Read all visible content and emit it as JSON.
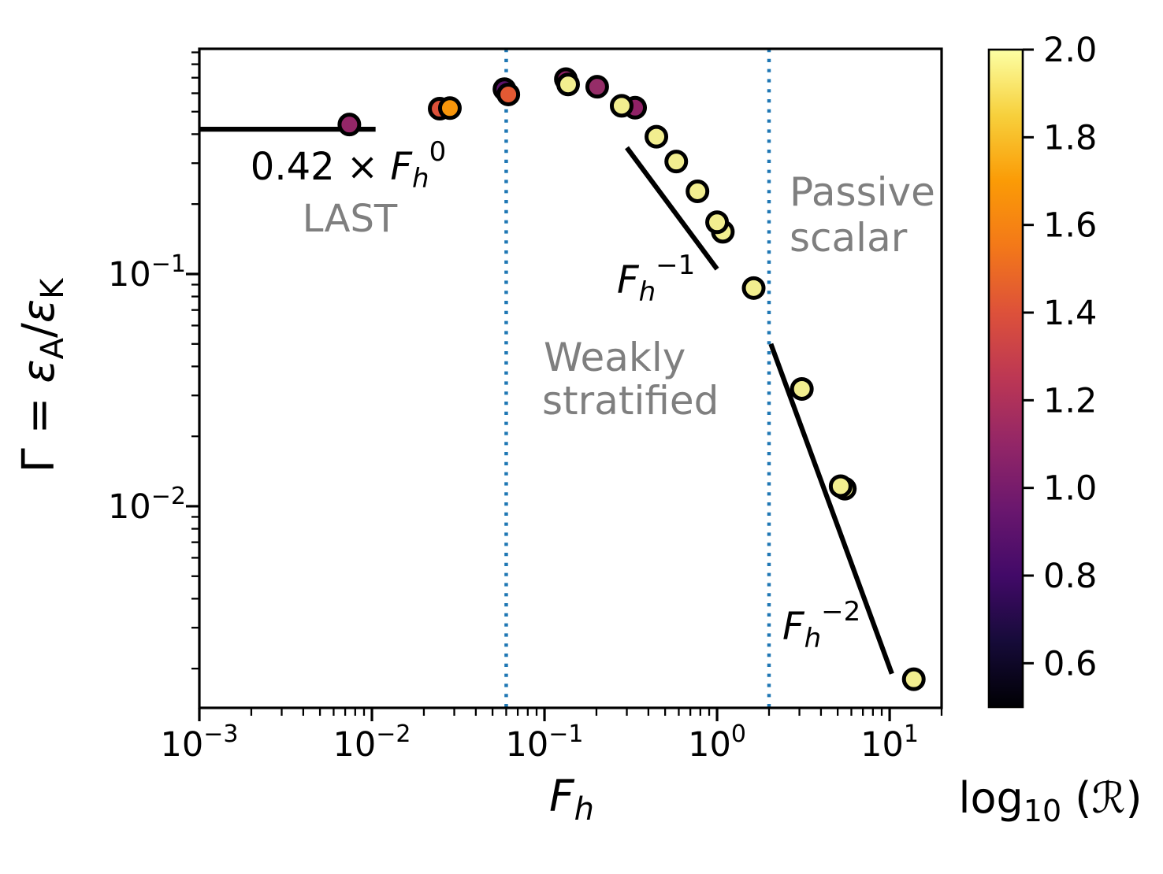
{
  "plot": {
    "xlabel": {
      "var": "F",
      "sub": "h"
    },
    "ylabel": {
      "pre": "Γ = ",
      "eps1": "ε",
      "subA": "A",
      "slash": "/",
      "eps2": "ε",
      "subK": "K"
    },
    "xticks": [
      {
        "base": "10",
        "exp": "−3",
        "value": 0.001
      },
      {
        "base": "10",
        "exp": "−2",
        "value": 0.01
      },
      {
        "base": "10",
        "exp": "−1",
        "value": 0.1
      },
      {
        "base": "10",
        "exp": "0",
        "value": 1
      },
      {
        "base": "10",
        "exp": "1",
        "value": 10
      }
    ],
    "yticks": [
      {
        "base": "10",
        "exp": "−1",
        "value": 0.1
      },
      {
        "base": "10",
        "exp": "−2",
        "value": 0.01
      }
    ]
  },
  "annotations": {
    "fit_label": {
      "prefix": "0.42 × ",
      "var": "F",
      "sub": "h",
      "sup": "0"
    },
    "last": "LAST",
    "weakly_line1": "Weakly",
    "weakly_line2": "stratified",
    "passive_line1": "Passive",
    "passive_line2": "scalar",
    "fh1": {
      "var": "F",
      "sub": "h",
      "sup": "−1"
    },
    "fh2": {
      "var": "F",
      "sub": "h",
      "sup": "−2"
    }
  },
  "colorbar": {
    "label": {
      "log": "log",
      "sub": "10",
      "open": " (",
      "symbol": "ℛ",
      "close": ")"
    },
    "vmin": 0.5,
    "vmax": 2.0,
    "tick_labels": [
      "2.0",
      "1.8",
      "1.6",
      "1.4",
      "1.2",
      "1.0",
      "0.8",
      "0.6"
    ],
    "colormap": "inferno",
    "gradient_bottom_to_top": [
      "#000004",
      "#160b39",
      "#420a68",
      "#6a176e",
      "#932667",
      "#bc3754",
      "#dd513a",
      "#f37819",
      "#fb9b06",
      "#f7d03c",
      "#fcffa4"
    ]
  },
  "colors": {
    "divider_blue": "#1f77b4",
    "annotation_gray": "#7f7f7f",
    "guide_line_black": "#000000",
    "marker_edge": "#000000",
    "pale_yellow_marker": "#f2ee8f"
  },
  "chart_data": {
    "type": "scatter",
    "title": "",
    "xlabel": "F_h",
    "ylabel": "Γ = ε_A/ε_K",
    "x_scale": "log",
    "y_scale": "log",
    "xlim": [
      0.001,
      20
    ],
    "ylim": [
      0.00135,
      0.932
    ],
    "grid": false,
    "colorbar_label": "log10(R)",
    "dividers_x": [
      0.06,
      2.0
    ],
    "regions": [
      "LAST",
      "Weakly stratified",
      "Passive scalar"
    ],
    "guide_lines": [
      {
        "name": "flat-0.42",
        "slope": 0,
        "from": [
          0.001,
          0.42
        ],
        "to": [
          0.0105,
          0.42
        ]
      },
      {
        "name": "Fh^-1",
        "slope": -1,
        "from": [
          0.3,
          0.35
        ],
        "to": [
          1.0,
          0.105
        ]
      },
      {
        "name": "Fh^-2",
        "slope": -2,
        "from": [
          2.05,
          0.05
        ],
        "to": [
          10.3,
          0.0019
        ]
      }
    ],
    "points": [
      {
        "Fh": 0.0074,
        "Gamma": 0.44,
        "log10R": 1.05,
        "color": "#932667"
      },
      {
        "Fh": 0.0247,
        "Gamma": 0.515,
        "log10R": 1.4,
        "color": "#dd513a"
      },
      {
        "Fh": 0.0283,
        "Gamma": 0.518,
        "log10R": 1.65,
        "color": "#f9960b"
      },
      {
        "Fh": 0.0586,
        "Gamma": 0.625,
        "log10R": 0.95,
        "color": "#5c126a"
      },
      {
        "Fh": 0.0617,
        "Gamma": 0.593,
        "log10R": 1.45,
        "color": "#e35933"
      },
      {
        "Fh": 0.133,
        "Gamma": 0.69,
        "log10R": 1.1,
        "color": "#8f2166"
      },
      {
        "Fh": 0.137,
        "Gamma": 0.655,
        "log10R": 1.95,
        "color": "#f2ee8f"
      },
      {
        "Fh": 0.202,
        "Gamma": 0.64,
        "log10R": 1.1,
        "color": "#952d68"
      },
      {
        "Fh": 0.335,
        "Gamma": 0.52,
        "log10R": 1.1,
        "color": "#8f2166"
      },
      {
        "Fh": 0.28,
        "Gamma": 0.53,
        "log10R": 1.95,
        "color": "#f2ee8f"
      },
      {
        "Fh": 0.445,
        "Gamma": 0.39,
        "log10R": 1.95,
        "color": "#f2ee8f"
      },
      {
        "Fh": 0.58,
        "Gamma": 0.305,
        "log10R": 1.95,
        "color": "#f2ee8f"
      },
      {
        "Fh": 0.77,
        "Gamma": 0.227,
        "log10R": 1.95,
        "color": "#f2ee8f"
      },
      {
        "Fh": 1.08,
        "Gamma": 0.152,
        "log10R": 1.95,
        "color": "#f2ee8f"
      },
      {
        "Fh": 1.0,
        "Gamma": 0.167,
        "log10R": 1.95,
        "color": "#f2ee8f"
      },
      {
        "Fh": 1.63,
        "Gamma": 0.087,
        "log10R": 1.95,
        "color": "#f2ee8f"
      },
      {
        "Fh": 3.1,
        "Gamma": 0.032,
        "log10R": 1.95,
        "color": "#f2ee8f"
      },
      {
        "Fh": 5.5,
        "Gamma": 0.0119,
        "log10R": 1.95,
        "color": "#f2ee8f"
      },
      {
        "Fh": 5.2,
        "Gamma": 0.0122,
        "log10R": 1.95,
        "color": "#f2ee8f"
      },
      {
        "Fh": 13.8,
        "Gamma": 0.0018,
        "log10R": 1.95,
        "color": "#f2ee8f"
      }
    ]
  }
}
